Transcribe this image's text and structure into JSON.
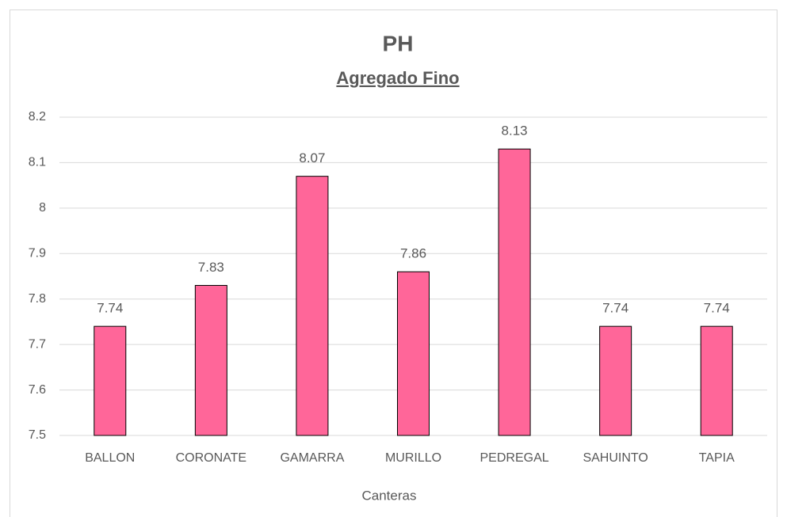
{
  "chart_data": {
    "type": "bar",
    "title": "PH",
    "subtitle": "Agregado Fino",
    "x_label": "Canteras",
    "categories": [
      "BALLON",
      "CORONATE",
      "GAMARRA",
      "MURILLO",
      "PEDREGAL",
      "SAHUINTO",
      "TAPIA"
    ],
    "values": [
      7.74,
      7.83,
      8.07,
      7.86,
      8.13,
      7.74,
      7.74
    ],
    "color": "#ff6699",
    "ylim": [
      7.5,
      8.2
    ],
    "yticks": [
      7.5,
      7.6,
      7.7,
      7.8,
      7.9,
      8,
      8.1,
      8.2
    ],
    "grid": true
  }
}
